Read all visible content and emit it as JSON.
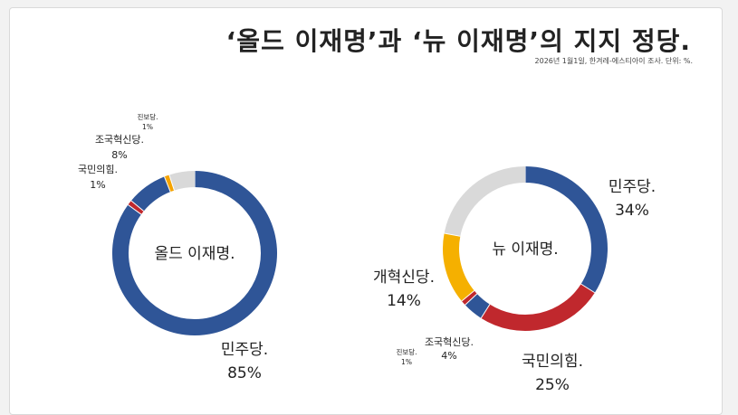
{
  "title": "‘올드 이재명’과 ‘뉴 이재명’의 지지 정당.",
  "subtitle": "2026년 1월1일, 한겨레-에스티아이 조사. 단위: %.",
  "chart_data": [
    {
      "type": "pie",
      "center_label": "올드 이재명.",
      "slices": [
        {
          "name": "민주당.",
          "value": 85,
          "value_label": "85%",
          "color": "#2f5597"
        },
        {
          "name": "국민의힘.",
          "value": 1,
          "value_label": "1%",
          "color": "#c0282d"
        },
        {
          "name": "조국혁신당.",
          "value": 8,
          "value_label": "8%",
          "color": "#2f5597"
        },
        {
          "name": "진보당.",
          "value": 1,
          "value_label": "1%",
          "color": "#f5a300"
        },
        {
          "name": "",
          "value": 5,
          "value_label": "",
          "color": "#d9d9d9"
        }
      ]
    },
    {
      "type": "pie",
      "center_label": "뉴 이재명.",
      "slices": [
        {
          "name": "민주당.",
          "value": 34,
          "value_label": "34%",
          "color": "#2f5597"
        },
        {
          "name": "국민의힘.",
          "value": 25,
          "value_label": "25%",
          "color": "#c0282d"
        },
        {
          "name": "조국혁신당.",
          "value": 4,
          "value_label": "4%",
          "color": "#2f5597"
        },
        {
          "name": "진보당.",
          "value": 1,
          "value_label": "1%",
          "color": "#c0282d"
        },
        {
          "name": "개혁신당.",
          "value": 14,
          "value_label": "14%",
          "color": "#f5b000"
        },
        {
          "name": "",
          "value": 22,
          "value_label": "",
          "color": "#d9d9d9"
        }
      ]
    }
  ]
}
